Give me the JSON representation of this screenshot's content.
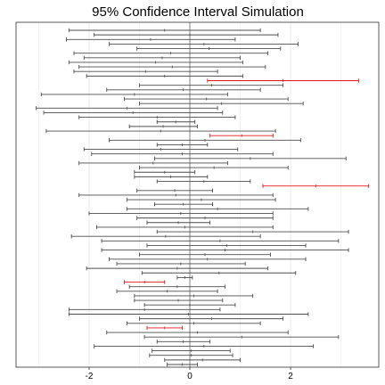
{
  "chart_data": {
    "type": "interval",
    "title": "95% Confidence Interval Simulation",
    "xlabel": "",
    "ylabel": "",
    "xlim": [
      -3.45,
      3.75
    ],
    "xticks": [
      -2,
      0,
      2
    ],
    "xtick_labels": [
      "-2",
      "0",
      "2"
    ],
    "grid": true,
    "legend": "none",
    "reference_value": 0,
    "colors": {
      "contains_true_value": "#4d4d4d",
      "misses_true_value": "#e41a1c",
      "reference_line": "#7a7a7a",
      "grid": "#ebebeb",
      "frame": "#333333"
    },
    "intervals": [
      {
        "lower": -2.4,
        "upper": 1.4,
        "mean": -0.5
      },
      {
        "lower": -1.9,
        "upper": 1.75,
        "mean": 0.0
      },
      {
        "lower": -2.45,
        "upper": 0.9,
        "mean": -0.78
      },
      {
        "lower": -1.6,
        "upper": 2.15,
        "mean": 0.28
      },
      {
        "lower": -1.05,
        "upper": 1.8,
        "mean": 0.38
      },
      {
        "lower": -2.3,
        "upper": 1.55,
        "mean": -0.38
      },
      {
        "lower": -2.1,
        "upper": 1.0,
        "mean": -0.55
      },
      {
        "lower": -2.4,
        "upper": 1.05,
        "mean": -0.68
      },
      {
        "lower": -2.2,
        "upper": 1.5,
        "mean": -0.35
      },
      {
        "lower": -2.3,
        "upper": 0.55,
        "mean": -0.88
      },
      {
        "lower": -2.05,
        "upper": 1.05,
        "mean": -0.5
      },
      {
        "lower": 0.35,
        "upper": 3.35,
        "mean": 1.85
      },
      {
        "lower": -1.0,
        "upper": 1.85,
        "mean": 0.43
      },
      {
        "lower": -1.65,
        "upper": 1.4,
        "mean": -0.13
      },
      {
        "lower": -2.95,
        "upper": 0.75,
        "mean": -1.1
      },
      {
        "lower": -1.3,
        "upper": 1.95,
        "mean": 0.33
      },
      {
        "lower": -1.0,
        "upper": 2.25,
        "mean": 0.63
      },
      {
        "lower": -3.05,
        "upper": 0.55,
        "mean": -1.25
      },
      {
        "lower": -2.9,
        "upper": 0.65,
        "mean": -1.13
      },
      {
        "lower": -2.2,
        "upper": 0.9,
        "mean": -0.65
      },
      {
        "lower": -0.65,
        "upper": 0.1,
        "mean": -0.28
      },
      {
        "lower": -1.2,
        "upper": 0.15,
        "mean": -0.53
      },
      {
        "lower": -2.85,
        "upper": 1.7,
        "mean": -0.58
      },
      {
        "lower": 0.4,
        "upper": 1.65,
        "mean": 1.03
      },
      {
        "lower": -1.6,
        "upper": 2.2,
        "mean": 0.3
      },
      {
        "lower": -0.65,
        "upper": 0.35,
        "mean": -0.15
      },
      {
        "lower": -2.1,
        "upper": 0.95,
        "mean": -0.58
      },
      {
        "lower": -1.95,
        "upper": 1.65,
        "mean": -0.15
      },
      {
        "lower": -0.7,
        "upper": 3.1,
        "mean": 1.2
      },
      {
        "lower": -2.2,
        "upper": 0.75,
        "mean": -0.73
      },
      {
        "lower": -1.0,
        "upper": 1.95,
        "mean": 0.48
      },
      {
        "lower": -1.1,
        "upper": 0.1,
        "mean": -0.5
      },
      {
        "lower": -1.1,
        "upper": 0.35,
        "mean": -0.38
      },
      {
        "lower": -0.65,
        "upper": 1.2,
        "mean": 0.28
      },
      {
        "lower": 1.45,
        "upper": 3.55,
        "mean": 2.5
      },
      {
        "lower": -1.05,
        "upper": 0.45,
        "mean": -0.3
      },
      {
        "lower": -2.2,
        "upper": 1.65,
        "mean": -0.28
      },
      {
        "lower": -1.25,
        "upper": 1.7,
        "mean": 0.23
      },
      {
        "lower": -0.7,
        "upper": 0.45,
        "mean": -0.13
      },
      {
        "lower": -1.25,
        "upper": 2.35,
        "mean": 0.55
      },
      {
        "lower": -2.0,
        "upper": 1.65,
        "mean": -0.18
      },
      {
        "lower": -1.05,
        "upper": 1.65,
        "mean": 0.3
      },
      {
        "lower": -0.85,
        "upper": 0.4,
        "mean": -0.23
      },
      {
        "lower": -1.85,
        "upper": 1.65,
        "mean": -0.1
      },
      {
        "lower": -0.65,
        "upper": 3.15,
        "mean": 1.25
      },
      {
        "lower": -2.35,
        "upper": 1.4,
        "mean": -0.48
      },
      {
        "lower": -1.75,
        "upper": 2.95,
        "mean": 0.6
      },
      {
        "lower": -0.85,
        "upper": 2.3,
        "mean": 0.73
      },
      {
        "lower": -1.75,
        "upper": 3.15,
        "mean": 0.7
      },
      {
        "lower": -1.0,
        "upper": 1.6,
        "mean": 0.3
      },
      {
        "lower": -1.6,
        "upper": 2.3,
        "mean": 0.35
      },
      {
        "lower": -1.45,
        "upper": 1.1,
        "mean": -0.18
      },
      {
        "lower": -2.05,
        "upper": 1.55,
        "mean": -0.25
      },
      {
        "lower": -0.95,
        "upper": 2.1,
        "mean": 0.58
      },
      {
        "lower": -0.25,
        "upper": 0.05,
        "mean": -0.1
      },
      {
        "lower": -1.3,
        "upper": -0.5,
        "mean": -0.9
      },
      {
        "lower": -1.2,
        "upper": 0.7,
        "mean": -0.25
      },
      {
        "lower": -1.45,
        "upper": 0.55,
        "mean": -0.45
      },
      {
        "lower": -1.1,
        "upper": 1.25,
        "mean": 0.08
      },
      {
        "lower": -1.1,
        "upper": 0.65,
        "mean": -0.23
      },
      {
        "lower": -0.9,
        "upper": 0.9,
        "mean": 0.0
      },
      {
        "lower": -2.4,
        "upper": 0.6,
        "mean": -0.9
      },
      {
        "lower": -2.4,
        "upper": 2.35,
        "mean": -0.03
      },
      {
        "lower": -1.0,
        "upper": 1.85,
        "mean": 0.43
      },
      {
        "lower": -1.25,
        "upper": 1.4,
        "mean": 0.08
      },
      {
        "lower": -0.85,
        "upper": -0.15,
        "mean": -0.5
      },
      {
        "lower": -1.65,
        "upper": 1.95,
        "mean": 0.15
      },
      {
        "lower": -0.9,
        "upper": 2.95,
        "mean": 1.03
      },
      {
        "lower": -0.65,
        "upper": 0.4,
        "mean": -0.13
      },
      {
        "lower": -1.9,
        "upper": 2.45,
        "mean": 0.28
      },
      {
        "lower": -0.75,
        "upper": 0.8,
        "mean": 0.03
      },
      {
        "lower": -0.8,
        "upper": 0.85,
        "mean": 0.03
      },
      {
        "lower": -0.5,
        "upper": 1.0,
        "mean": 0.25
      },
      {
        "lower": -0.45,
        "upper": 0.15,
        "mean": -0.15
      }
    ]
  }
}
